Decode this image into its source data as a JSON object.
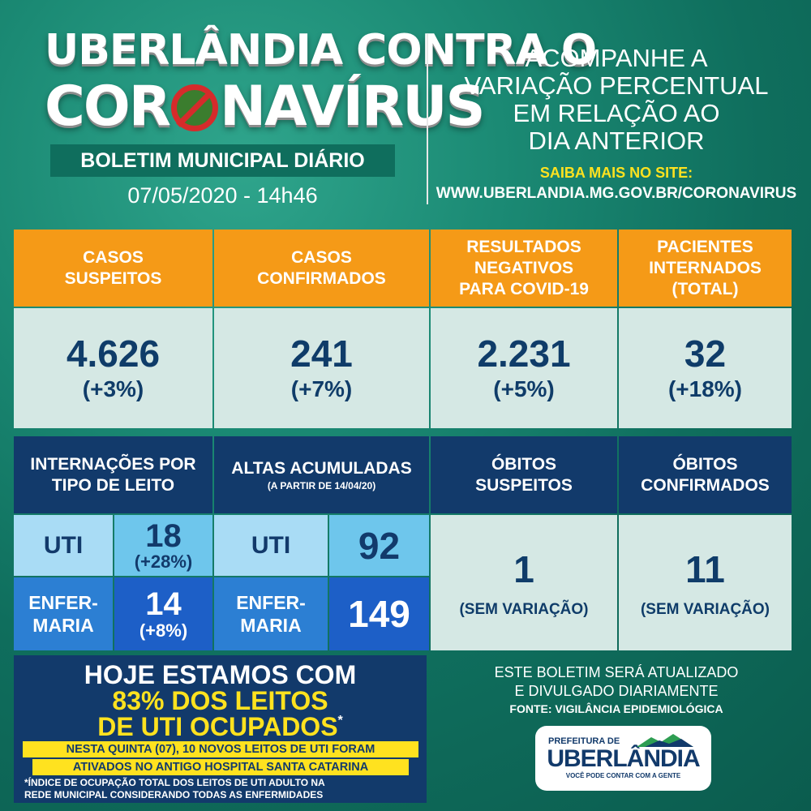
{
  "header": {
    "title_line1": "UBERLÂNDIA CONTRA O",
    "title_line2_a": "COR",
    "title_line2_b": "NAVÍRUS",
    "bulletin": "BOLETIM MUNICIPAL DIÁRIO",
    "datetime": "07/05/2020 - 14h46",
    "right_line1": "ACOMPANHE A",
    "right_line2": "VARIAÇÃO PERCENTUAL",
    "right_line3": "EM RELAÇÃO AO",
    "right_line4": "DIA ANTERIOR",
    "site_label": "SAIBA MAIS NO SITE:",
    "site_url": "WWW.UBERLANDIA.MG.GOV.BR/CORONAVIRUS"
  },
  "top_stats": [
    {
      "label_l1": "CASOS",
      "label_l2": "SUSPEITOS",
      "label_l3": "",
      "value": "4.626",
      "change": "(+3%)"
    },
    {
      "label_l1": "CASOS",
      "label_l2": "CONFIRMADOS",
      "label_l3": "",
      "value": "241",
      "change": "(+7%)"
    },
    {
      "label_l1": "RESULTADOS",
      "label_l2": "NEGATIVOS",
      "label_l3": "PARA COVID-19",
      "value": "2.231",
      "change": "(+5%)"
    },
    {
      "label_l1": "PACIENTES",
      "label_l2": "INTERNADOS",
      "label_l3": "(TOTAL)",
      "value": "32",
      "change": "(+18%)"
    }
  ],
  "internacoes": {
    "title_l1": "INTERNAÇÕES POR",
    "title_l2": "TIPO DE LEITO",
    "uti_label": "UTI",
    "uti_value": "18",
    "uti_change": "(+28%)",
    "enf_label_l1": "ENFER-",
    "enf_label_l2": "MARIA",
    "enf_value": "14",
    "enf_change": "(+8%)"
  },
  "altas": {
    "title": "ALTAS ACUMULADAS",
    "subtitle": "(A PARTIR DE 14/04/20)",
    "uti_label": "UTI",
    "uti_value": "92",
    "enf_label_l1": "ENFER-",
    "enf_label_l2": "MARIA",
    "enf_value": "149"
  },
  "obitos_suspeitos": {
    "title_l1": "ÓBITOS",
    "title_l2": "SUSPEITOS",
    "value": "1",
    "note": "(SEM VARIAÇÃO)"
  },
  "obitos_confirmados": {
    "title_l1": "ÓBITOS",
    "title_l2": "CONFIRMADOS",
    "value": "11",
    "note": "(SEM VARIAÇÃO)"
  },
  "occupancy": {
    "line1": "HOJE ESTAMOS COM",
    "line2": "83% DOS LEITOS",
    "line3": "DE UTI OCUPADOS",
    "asterisk": "*",
    "highlight1": "NESTA QUINTA (07), 10 NOVOS LEITOS DE UTI FORAM",
    "highlight2": "ATIVADOS NO ANTIGO HOSPITAL SANTA CATARINA",
    "note_l1": "*ÍNDICE DE OCUPAÇÃO TOTAL DOS LEITOS DE UTI ADULTO NA",
    "note_l2": "REDE MUNICIPAL CONSIDERANDO TODAS AS ENFERMIDADES"
  },
  "footer": {
    "update_l1": "ESTE BOLETIM SERÁ ATUALIZADO",
    "update_l2": "E DIVULGADO DIARIAMENTE",
    "source": "FONTE: VIGILÂNCIA EPIDEMIOLÓGICA",
    "logo_top": "PREFEITURA DE",
    "logo_main": "UBERLÂNDIA",
    "logo_tagline": "VOCÊ PODE CONTAR COM A GENTE"
  },
  "colors": {
    "orange": "#f59a17",
    "navy": "#123a6b",
    "yellow": "#ffe21f",
    "light_cell": "#d5e8e4",
    "green_bg": "#1b8a74"
  }
}
